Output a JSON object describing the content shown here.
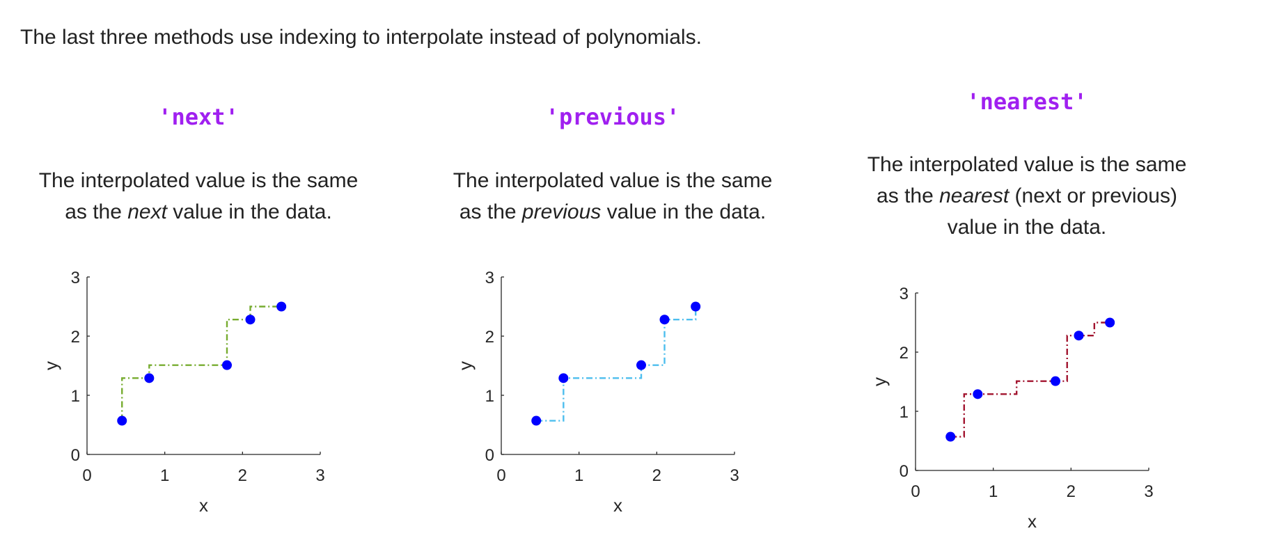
{
  "intro": "The last three methods use indexing to interpolate instead of polynomials.",
  "panels": [
    {
      "method": "'next'",
      "desc": {
        "line1": "The interpolated value is the same",
        "pre": "as the ",
        "em": "next",
        "post": " value in the data."
      }
    },
    {
      "method": "'previous'",
      "desc": {
        "line1": "The interpolated value is the same",
        "pre": "as the ",
        "em": "previous",
        "post": " value in the data."
      }
    },
    {
      "method": "'nearest'",
      "desc": {
        "line1": "The interpolated value is the same",
        "pre": "as the ",
        "em": "nearest",
        "post": " (next or previous)",
        "line3": "value in the data."
      }
    }
  ],
  "chart_data": [
    {
      "type": "line",
      "method": "next",
      "xlabel": "x",
      "ylabel": "y",
      "xlim": [
        0,
        3
      ],
      "ylim": [
        0,
        3
      ],
      "xticks": [
        0,
        1,
        2,
        3
      ],
      "yticks": [
        0,
        1,
        2,
        3
      ],
      "grid": false,
      "line_color": "#77ac30",
      "marker_color": "#0000ff",
      "points": {
        "x": [
          0.45,
          0.8,
          1.8,
          2.1,
          2.5
        ],
        "y": [
          0.57,
          1.29,
          1.51,
          2.28,
          2.5
        ]
      },
      "line": {
        "x": [
          0.45,
          0.45,
          0.8,
          0.8,
          1.8,
          1.8,
          2.1,
          2.1,
          2.5
        ],
        "y": [
          0.57,
          1.29,
          1.29,
          1.51,
          1.51,
          2.28,
          2.28,
          2.5,
          2.5
        ]
      }
    },
    {
      "type": "line",
      "method": "previous",
      "xlabel": "x",
      "ylabel": "y",
      "xlim": [
        0,
        3
      ],
      "ylim": [
        0,
        3
      ],
      "xticks": [
        0,
        1,
        2,
        3
      ],
      "yticks": [
        0,
        1,
        2,
        3
      ],
      "grid": false,
      "line_color": "#4dbeee",
      "marker_color": "#0000ff",
      "points": {
        "x": [
          0.45,
          0.8,
          1.8,
          2.1,
          2.5
        ],
        "y": [
          0.57,
          1.29,
          1.51,
          2.28,
          2.5
        ]
      },
      "line": {
        "x": [
          0.45,
          0.8,
          0.8,
          1.8,
          1.8,
          2.1,
          2.1,
          2.5,
          2.5
        ],
        "y": [
          0.57,
          0.57,
          1.29,
          1.29,
          1.51,
          1.51,
          2.28,
          2.28,
          2.5
        ]
      }
    },
    {
      "type": "line",
      "method": "nearest",
      "xlabel": "x",
      "ylabel": "y",
      "xlim": [
        0,
        3
      ],
      "ylim": [
        0,
        3
      ],
      "xticks": [
        0,
        1,
        2,
        3
      ],
      "yticks": [
        0,
        1,
        2,
        3
      ],
      "grid": false,
      "line_color": "#a2142f",
      "marker_color": "#0000ff",
      "points": {
        "x": [
          0.45,
          0.8,
          1.8,
          2.1,
          2.5
        ],
        "y": [
          0.57,
          1.29,
          1.51,
          2.28,
          2.5
        ]
      },
      "line": {
        "x": [
          0.45,
          0.625,
          0.625,
          1.3,
          1.3,
          1.95,
          1.95,
          2.3,
          2.3,
          2.5
        ],
        "y": [
          0.57,
          0.57,
          1.29,
          1.29,
          1.51,
          1.51,
          2.28,
          2.28,
          2.5,
          2.5
        ]
      }
    }
  ]
}
